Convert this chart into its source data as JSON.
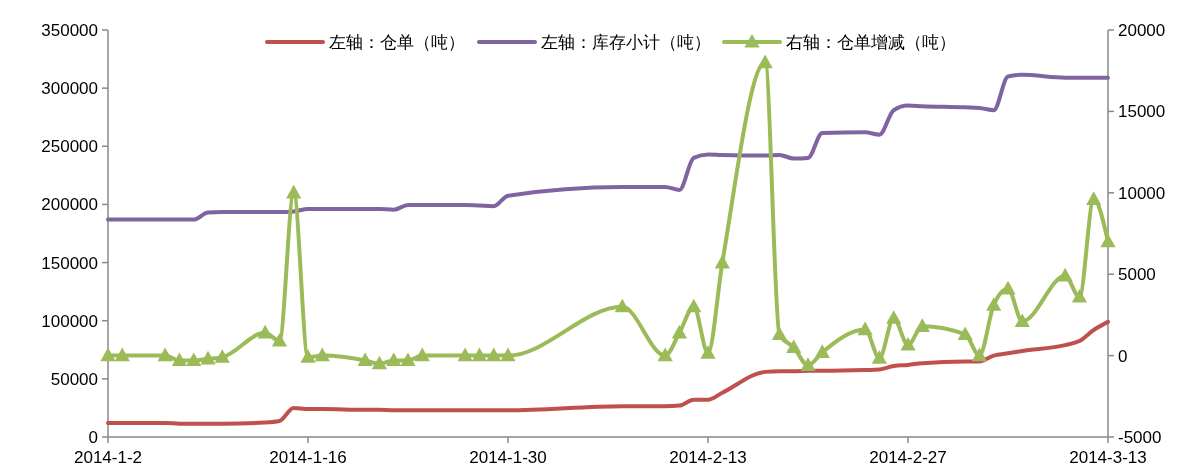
{
  "chart_data": {
    "type": "line",
    "legend": "top",
    "grid": false,
    "line_style": "solid",
    "xlim": [
      "2014-01-02",
      "2014-03-13"
    ],
    "xticks": [
      {
        "value": "2014-01-02",
        "label": "2014-1-2"
      },
      {
        "value": "2014-01-16",
        "label": "2014-1-16"
      },
      {
        "value": "2014-01-30",
        "label": "2014-1-30"
      },
      {
        "value": "2014-02-13",
        "label": "2014-2-13"
      },
      {
        "value": "2014-02-27",
        "label": "2014-2-27"
      },
      {
        "value": "2014-03-13",
        "label": "2014-3-13"
      }
    ],
    "ylim": [
      0,
      350000
    ],
    "yticks": [
      0,
      50000,
      100000,
      150000,
      200000,
      250000,
      300000,
      350000
    ],
    "y2lim": [
      -5000,
      20000
    ],
    "y2ticks": [
      -5000,
      0,
      5000,
      10000,
      15000,
      20000
    ],
    "x": [
      "2014-01-02",
      "2014-01-03",
      "2014-01-06",
      "2014-01-07",
      "2014-01-08",
      "2014-01-09",
      "2014-01-10",
      "2014-01-13",
      "2014-01-14",
      "2014-01-15",
      "2014-01-16",
      "2014-01-17",
      "2014-01-20",
      "2014-01-21",
      "2014-01-22",
      "2014-01-23",
      "2014-01-24",
      "2014-01-27",
      "2014-01-28",
      "2014-01-29",
      "2014-01-30",
      "2014-02-07",
      "2014-02-10",
      "2014-02-11",
      "2014-02-12",
      "2014-02-13",
      "2014-02-14",
      "2014-02-17",
      "2014-02-18",
      "2014-02-19",
      "2014-02-20",
      "2014-02-21",
      "2014-02-24",
      "2014-02-25",
      "2014-02-26",
      "2014-02-27",
      "2014-02-28",
      "2014-03-03",
      "2014-03-04",
      "2014-03-05",
      "2014-03-06",
      "2014-03-07",
      "2014-03-10",
      "2014-03-11",
      "2014-03-12",
      "2014-03-13"
    ],
    "series": [
      {
        "name": "左轴：仓单（吨）",
        "color": "#c0504d",
        "marker": "none",
        "values": [
          12000,
          12000,
          12000,
          11500,
          11500,
          11500,
          11500,
          12500,
          13800,
          25000,
          24000,
          24000,
          23500,
          23500,
          23000,
          23000,
          23000,
          23000,
          23000,
          23000,
          23000,
          26500,
          26500,
          27000,
          32000,
          32000,
          38000,
          56000,
          56500,
          56500,
          57000,
          57000,
          57600,
          58000,
          61000,
          62000,
          63500,
          65000,
          65000,
          70000,
          72000,
          74000,
          79000,
          82500,
          92000,
          99000
        ]
      },
      {
        "name": "左轴：库存小计（吨）",
        "color": "#8064a2",
        "marker": "none",
        "values": [
          187000,
          187000,
          187000,
          187000,
          187000,
          193000,
          193500,
          193500,
          193500,
          194000,
          196000,
          196000,
          196000,
          196000,
          195500,
          199500,
          199500,
          199500,
          199000,
          198500,
          207500,
          215000,
          215000,
          212500,
          240000,
          243000,
          242500,
          242000,
          242500,
          239500,
          240000,
          261500,
          262000,
          260000,
          281000,
          285000,
          284500,
          283500,
          283000,
          281000,
          310000,
          311500,
          309000,
          309000,
          309000,
          309000
        ]
      },
      {
        "name": "右轴：仓单增减（吨）",
        "color": "#9bbb59",
        "marker": "triangle",
        "axis": "y2",
        "values": [
          0,
          0,
          0,
          -300,
          -300,
          -200,
          -100,
          1400,
          900,
          10000,
          -100,
          0,
          -300,
          -500,
          -300,
          -300,
          0,
          0,
          0,
          0,
          0,
          3000,
          0,
          1400,
          3000,
          150,
          5700,
          18000,
          1300,
          500,
          -600,
          200,
          1600,
          -150,
          2300,
          650,
          1800,
          1300,
          0,
          3100,
          4100,
          2100,
          4900,
          3600,
          9600,
          7000
        ]
      }
    ]
  }
}
